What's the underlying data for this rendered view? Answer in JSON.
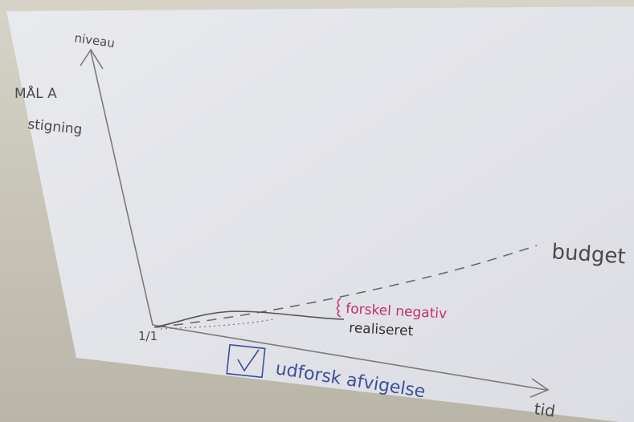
{
  "axis": {
    "y_label": "niveau",
    "x_label": "tid",
    "origin_label": "1/1"
  },
  "goal": {
    "line1": "MÅL A",
    "line2": "stigning"
  },
  "lines": {
    "budget": "budget",
    "actual": "realiseret"
  },
  "annotation": "forskel negativ",
  "action": "udforsk afvigelse"
}
